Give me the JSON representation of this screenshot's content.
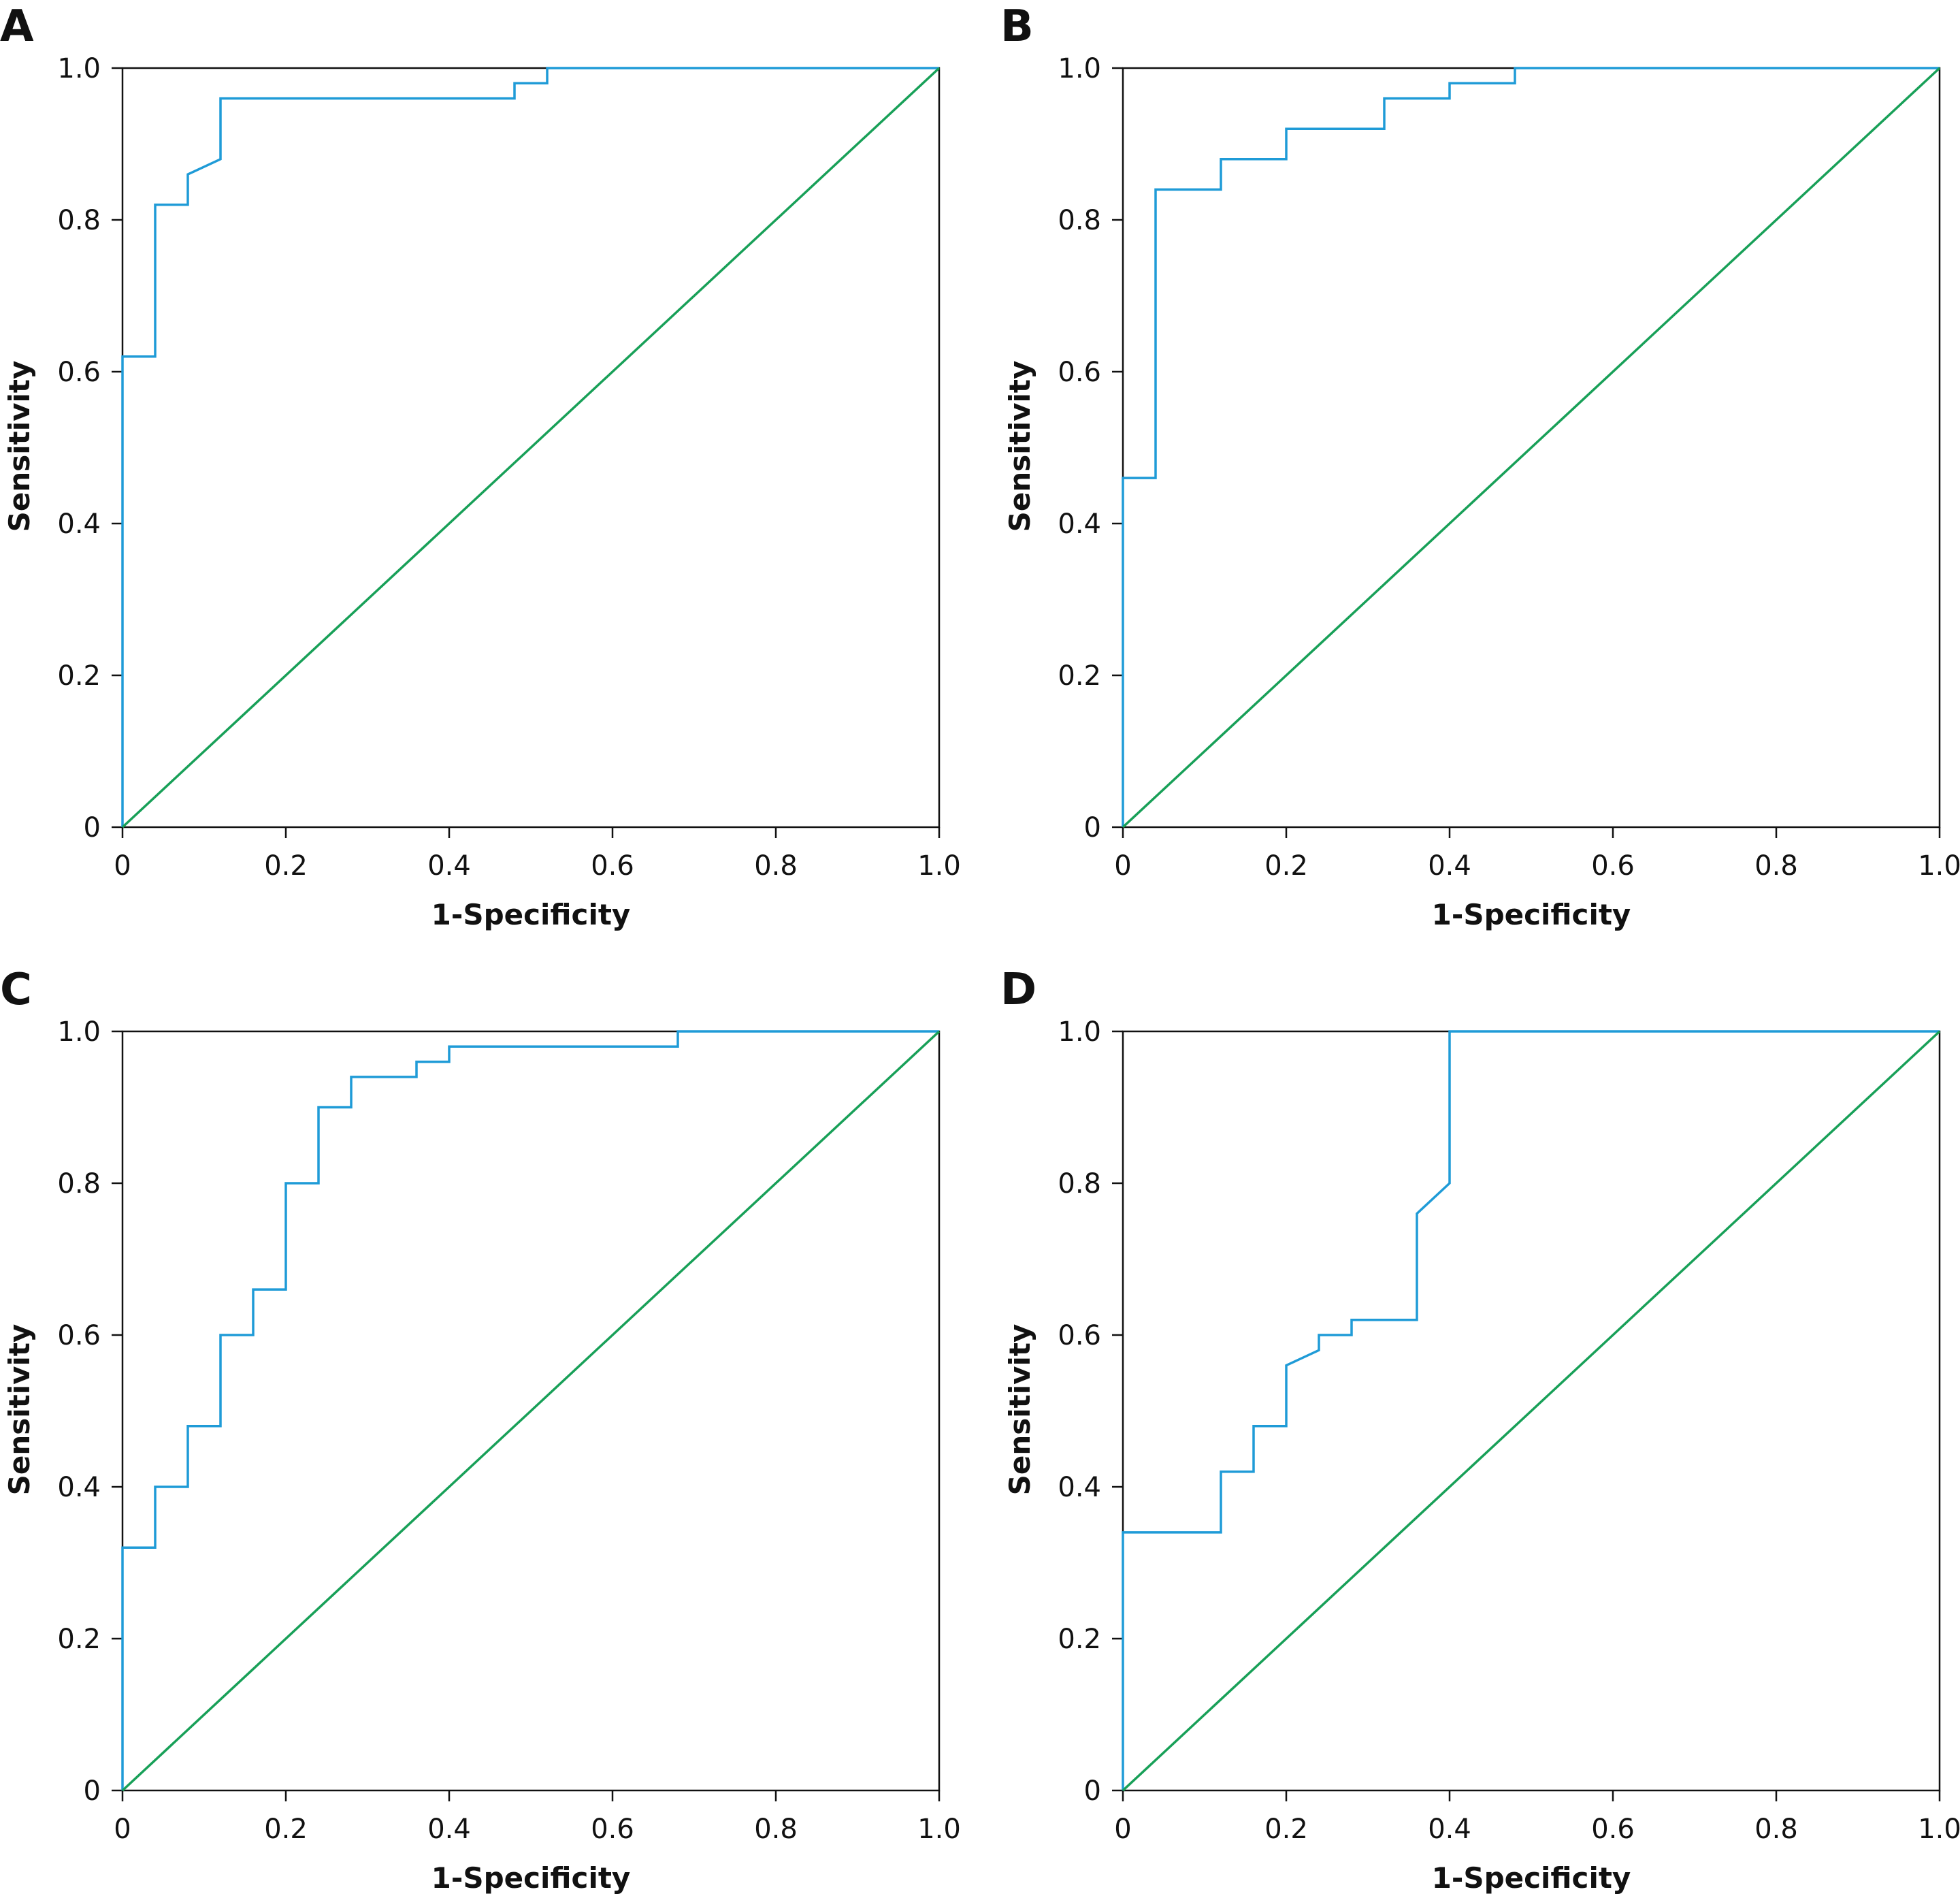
{
  "chart_data": [
    {
      "type": "line",
      "panel": "A",
      "xlabel": "1-Specificity",
      "ylabel": "Sensitivity",
      "xlim": [
        0,
        1
      ],
      "ylim": [
        0,
        1
      ],
      "xticks": [
        "0",
        "0.2",
        "0.4",
        "0.6",
        "0.8",
        "1.0"
      ],
      "yticks": [
        "0",
        "0.2",
        "0.4",
        "0.6",
        "0.8",
        "1.0"
      ],
      "grid": false,
      "colors": {
        "roc": "#1f9bd7",
        "reference": "#18a058",
        "frame": "#111111"
      },
      "series": [
        {
          "x": [
            0,
            0,
            0.04,
            0.04,
            0.08,
            0.08,
            0.12,
            0.12,
            0.48,
            0.48,
            0.52,
            0.52,
            1.0
          ],
          "y": [
            0,
            0.62,
            0.62,
            0.82,
            0.82,
            0.86,
            0.88,
            0.96,
            0.96,
            0.98,
            0.98,
            1.0,
            1.0
          ]
        },
        {
          "x": [
            0,
            1
          ],
          "y": [
            0,
            1
          ]
        }
      ]
    },
    {
      "type": "line",
      "panel": "B",
      "xlabel": "1-Specificity",
      "ylabel": "Sensitivity",
      "xlim": [
        0,
        1
      ],
      "ylim": [
        0,
        1
      ],
      "xticks": [
        "0",
        "0.2",
        "0.4",
        "0.6",
        "0.8",
        "1.0"
      ],
      "yticks": [
        "0",
        "0.2",
        "0.4",
        "0.6",
        "0.8",
        "1.0"
      ],
      "grid": false,
      "colors": {
        "roc": "#1f9bd7",
        "reference": "#18a058",
        "frame": "#111111"
      },
      "series": [
        {
          "x": [
            0,
            0,
            0.04,
            0.04,
            0.12,
            0.12,
            0.2,
            0.2,
            0.32,
            0.32,
            0.4,
            0.4,
            0.48,
            0.48,
            1.0
          ],
          "y": [
            0,
            0.46,
            0.46,
            0.84,
            0.84,
            0.88,
            0.88,
            0.92,
            0.92,
            0.96,
            0.96,
            0.98,
            0.98,
            1.0,
            1.0
          ]
        },
        {
          "x": [
            0,
            1
          ],
          "y": [
            0,
            1
          ]
        }
      ]
    },
    {
      "type": "line",
      "panel": "C",
      "xlabel": "1-Specificity",
      "ylabel": "Sensitivity",
      "xlim": [
        0,
        1
      ],
      "ylim": [
        0,
        1
      ],
      "xticks": [
        "0",
        "0.2",
        "0.4",
        "0.6",
        "0.8",
        "1.0"
      ],
      "yticks": [
        "0",
        "0.2",
        "0.4",
        "0.6",
        "0.8",
        "1.0"
      ],
      "grid": false,
      "colors": {
        "roc": "#1f9bd7",
        "reference": "#18a058",
        "frame": "#111111"
      },
      "series": [
        {
          "x": [
            0,
            0,
            0.04,
            0.04,
            0.08,
            0.08,
            0.12,
            0.12,
            0.16,
            0.16,
            0.2,
            0.2,
            0.24,
            0.24,
            0.28,
            0.28,
            0.36,
            0.36,
            0.4,
            0.4,
            0.68,
            0.68,
            1.0
          ],
          "y": [
            0,
            0.32,
            0.32,
            0.4,
            0.4,
            0.48,
            0.48,
            0.6,
            0.6,
            0.66,
            0.66,
            0.8,
            0.8,
            0.9,
            0.9,
            0.94,
            0.94,
            0.96,
            0.96,
            0.98,
            0.98,
            1.0,
            1.0
          ]
        },
        {
          "x": [
            0,
            1
          ],
          "y": [
            0,
            1
          ]
        }
      ]
    },
    {
      "type": "line",
      "panel": "D",
      "xlabel": "1-Specificity",
      "ylabel": "Sensitivity",
      "xlim": [
        0,
        1
      ],
      "ylim": [
        0,
        1
      ],
      "xticks": [
        "0",
        "0.2",
        "0.4",
        "0.6",
        "0.8",
        "1.0"
      ],
      "yticks": [
        "0",
        "0.2",
        "0.4",
        "0.6",
        "0.8",
        "1.0"
      ],
      "grid": false,
      "colors": {
        "roc": "#1f9bd7",
        "reference": "#18a058",
        "frame": "#111111"
      },
      "series": [
        {
          "x": [
            0,
            0,
            0.12,
            0.12,
            0.16,
            0.16,
            0.2,
            0.2,
            0.24,
            0.24,
            0.28,
            0.28,
            0.36,
            0.36,
            0.4,
            0.4,
            1.0
          ],
          "y": [
            0,
            0.34,
            0.34,
            0.42,
            0.42,
            0.48,
            0.48,
            0.56,
            0.58,
            0.6,
            0.6,
            0.62,
            0.62,
            0.76,
            0.8,
            1.0,
            1.0
          ]
        },
        {
          "x": [
            0,
            1
          ],
          "y": [
            0,
            1
          ]
        }
      ]
    }
  ]
}
